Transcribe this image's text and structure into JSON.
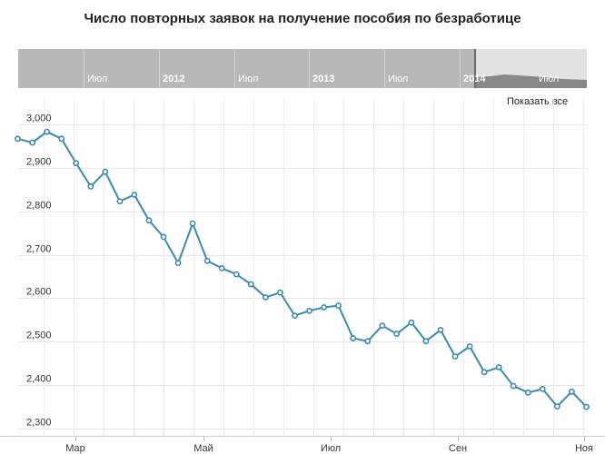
{
  "title": "Число повторных заявок на получение пособия по безработице",
  "navigator": {
    "labels": [
      "Июл",
      "2012",
      "Июл",
      "2013",
      "Июл",
      "2014",
      "Июл"
    ],
    "bold": [
      false,
      true,
      false,
      true,
      false,
      true,
      false
    ],
    "colors": {
      "background": "#b8b8b8",
      "selection": "#e2e2e2",
      "text": "#ffffff",
      "area": "#888888"
    }
  },
  "show_all_label": "Показать все",
  "chart_data": {
    "type": "line",
    "title": "Число повторных заявок на получение пособия по безработице",
    "xlabel": "",
    "ylabel": "",
    "ylim": [
      2290,
      3020
    ],
    "yticks": [
      3000,
      2900,
      2800,
      2700,
      2600,
      2500,
      2400,
      2300
    ],
    "ytick_labels": [
      "3,000",
      "2,900",
      "2,800",
      "2,700",
      "2,600",
      "2,500",
      "2,400",
      "2,300"
    ],
    "xtick_labels": [
      "Мар",
      "Май",
      "Июл",
      "Сен",
      "Ноя"
    ],
    "grid": true,
    "series": [
      {
        "color": "#3d8aab",
        "values": [
          2967,
          2958,
          2983,
          2967,
          2911,
          2857,
          2891,
          2823,
          2838,
          2779,
          2741,
          2681,
          2772,
          2686,
          2669,
          2655,
          2632,
          2602,
          2613,
          2560,
          2571,
          2579,
          2583,
          2508,
          2501,
          2537,
          2518,
          2544,
          2501,
          2527,
          2466,
          2489,
          2430,
          2441,
          2398,
          2383,
          2391,
          2351,
          2385,
          2350
        ]
      }
    ]
  }
}
